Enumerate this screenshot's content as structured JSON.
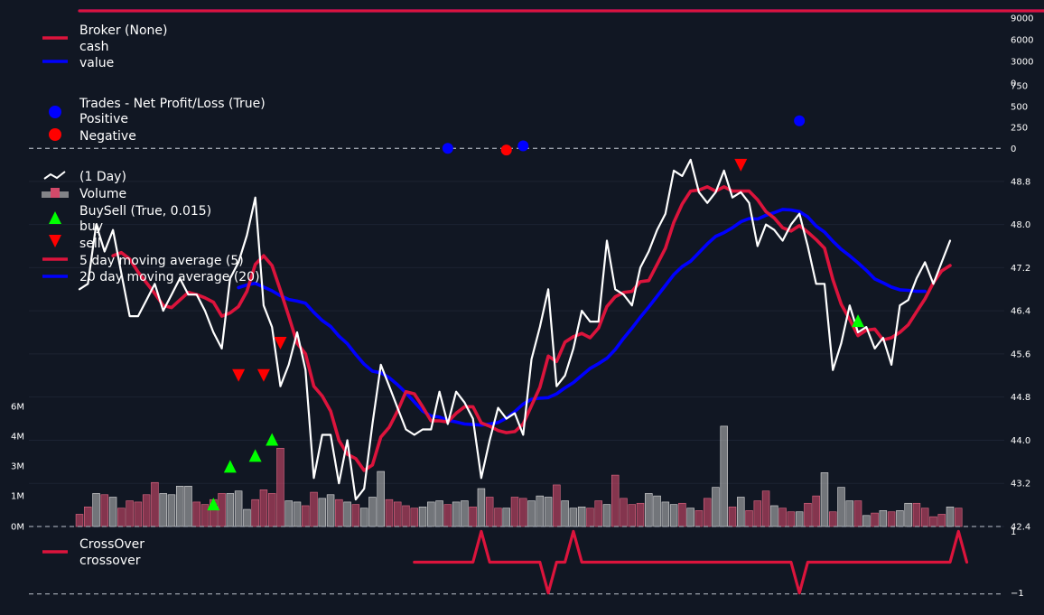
{
  "colors": {
    "background": "#111723",
    "cash": "#dc143c",
    "value": "#0000ff",
    "positive": "#0000ff",
    "negative": "#ff0000",
    "price": "#ffffff",
    "sma5": "#dc143c",
    "sma20": "#0000ff",
    "buy": "#00ff00",
    "sell": "#ff0000",
    "volume_up": "#b4b4b4",
    "volume_down": "#d24a6a",
    "crossover": "#dc143c",
    "grid": "#1c2333",
    "dashed": "#9aa0aa",
    "text": "#ffffff"
  },
  "chart_data": [
    {
      "type": "line",
      "panel": "broker",
      "legend_title": "Broker (None)",
      "legend": "top-left",
      "yticks": [
        "0",
        "3000",
        "6000",
        "9000"
      ],
      "ylim": [
        0,
        10500
      ],
      "series": [
        {
          "name": "cash",
          "values": [
            10000,
            10000,
            10000,
            10000,
            10000,
            10000,
            10000,
            10000,
            10000,
            10000,
            10000,
            10000,
            10000,
            10000,
            10000,
            10000,
            10000,
            10000,
            10000,
            10000,
            10000,
            10000,
            10000,
            10000,
            10000,
            10000,
            10000,
            10000,
            10000,
            10000,
            10000,
            10000,
            10000,
            10000,
            10000,
            10000,
            10000,
            10000,
            10000,
            10000,
            10000,
            10000,
            10000,
            10000,
            10000,
            10000,
            10000,
            10000,
            10000,
            10000,
            10000,
            10000,
            10000,
            10000,
            10000,
            10000,
            10000,
            10000,
            10000,
            10000,
            10000,
            10000,
            10000,
            10000,
            10000,
            10000,
            10000,
            10000,
            10000,
            10000,
            10000,
            10000,
            10000,
            10000,
            10000,
            10000,
            10000,
            10000,
            10000,
            10000,
            10000,
            10000,
            10000,
            10000,
            10000,
            10000,
            10000,
            10000,
            10000,
            10000,
            10000,
            10000,
            10000,
            10000,
            10000,
            10000,
            10000,
            10000,
            10000,
            10000,
            10000,
            10000,
            10000,
            10000,
            10000,
            10000,
            10000,
            10000,
            10000,
            10000,
            10000,
            10000,
            10000,
            10000,
            10000,
            10000,
            10000,
            10000,
            10000,
            10000,
            10000,
            10000
          ]
        },
        {
          "name": "value",
          "values": [
            10000,
            10000,
            10000,
            10000,
            10000,
            10000,
            10000,
            10000,
            10000,
            10000,
            10000,
            10000,
            10000,
            10000,
            10000,
            10000,
            10000,
            10000,
            10000,
            10000,
            10000,
            10000,
            10000,
            10000,
            10000,
            10000,
            10000,
            10000,
            10000,
            10000,
            10000,
            10000,
            10000,
            10000,
            10000,
            10000,
            10000,
            10000,
            10000,
            10000,
            10000,
            10000,
            10000,
            10000,
            10000,
            10000,
            10000,
            10000,
            10000,
            10000,
            10000,
            10000,
            10000,
            10000,
            10000,
            10000,
            10000,
            10000,
            10000,
            10000,
            10000,
            10000,
            10000,
            10000,
            10000,
            10000,
            10000,
            10000,
            10000,
            10000,
            10000,
            10000,
            10000,
            10000,
            10000,
            10000,
            10000,
            10000,
            10000,
            10000,
            10000,
            10000,
            10000,
            10000,
            10000,
            10000,
            10000,
            10000,
            10000,
            10000,
            10000,
            10000,
            10000,
            10000,
            10000,
            10000,
            10000,
            10000,
            10000,
            10000,
            10000,
            10000,
            10000,
            10000,
            10000,
            10000,
            10000,
            10000,
            10000,
            10000,
            10000,
            10000,
            10000,
            10000,
            10000,
            10000,
            10000,
            10000,
            10000,
            10000,
            10000,
            10000
          ]
        }
      ]
    },
    {
      "type": "scatter",
      "panel": "trades",
      "legend_title": "Trades - Net Profit/Loss (True)",
      "legend": "top-left",
      "yticks": [
        "0",
        "250",
        "500",
        "750"
      ],
      "ylim": [
        -40,
        780
      ],
      "series": [
        {
          "name": "Positive",
          "points": [
            [
              44,
              0
            ],
            [
              53,
              30
            ],
            [
              86,
              330
            ]
          ]
        },
        {
          "name": "Negative",
          "points": [
            [
              51,
              -20
            ]
          ]
        }
      ]
    },
    {
      "type": "line",
      "panel": "price",
      "legend": "top-left",
      "yticks": [
        "42.4",
        "43.2",
        "44.0",
        "44.8",
        "45.6",
        "46.4",
        "47.2",
        "48.0",
        "48.8"
      ],
      "ylim": [
        42.4,
        49.4
      ],
      "volume_yticks": [
        "0M",
        "1M",
        "3M",
        "4M",
        "6M"
      ],
      "volume_ylim": [
        0,
        6.2
      ],
      "series": [
        {
          "name": "(1 Day)",
          "values": [
            46.8,
            46.9,
            48.0,
            47.5,
            47.9,
            47.1,
            46.3,
            46.3,
            46.6,
            46.9,
            46.4,
            46.7,
            47.0,
            46.7,
            46.7,
            46.4,
            46.0,
            45.7,
            47.0,
            47.3,
            47.8,
            48.5,
            46.5,
            46.1,
            45.0,
            45.4,
            46.0,
            45.3,
            43.3,
            44.1,
            44.1,
            43.2,
            44.0,
            42.9,
            43.1,
            44.3,
            45.4,
            45.0,
            44.6,
            44.2,
            44.1,
            44.2,
            44.2,
            44.9,
            44.3,
            44.9,
            44.7,
            44.4,
            43.3,
            44.0,
            44.6,
            44.4,
            44.5,
            44.1,
            45.5,
            46.1,
            46.8,
            45.0,
            45.2,
            45.7,
            46.4,
            46.2,
            46.2,
            47.7,
            46.8,
            46.7,
            46.5,
            47.2,
            47.5,
            47.9,
            48.2,
            49.0,
            48.9,
            49.2,
            48.6,
            48.4,
            48.6,
            49.0,
            48.5,
            48.6,
            48.4,
            47.6,
            48.0,
            47.9,
            47.7,
            48.0,
            48.2,
            47.6,
            46.9,
            46.9,
            45.3,
            45.8,
            46.5,
            46.0,
            46.1,
            45.7,
            45.9,
            45.4,
            46.5,
            46.6,
            47.0,
            47.3,
            46.9,
            47.3,
            47.7
          ]
        },
        {
          "name": "5 day moving average (5)",
          "values": [
            null,
            null,
            null,
            null,
            47.42,
            47.48,
            47.36,
            47.12,
            46.92,
            46.72,
            46.5,
            46.46,
            46.6,
            46.74,
            46.7,
            46.64,
            46.56,
            46.3,
            46.36,
            46.48,
            46.76,
            47.26,
            47.42,
            47.24,
            46.78,
            46.3,
            45.8,
            45.6,
            45.0,
            44.82,
            44.54,
            44.0,
            43.74,
            43.66,
            43.44,
            43.54,
            44.06,
            44.24,
            44.54,
            44.9,
            44.86,
            44.62,
            44.36,
            44.36,
            44.34,
            44.5,
            44.62,
            44.62,
            44.32,
            44.26,
            44.18,
            44.14,
            44.16,
            44.3,
            44.64,
            44.98,
            45.56,
            45.46,
            45.82,
            45.92,
            45.98,
            45.9,
            46.08,
            46.48,
            46.66,
            46.74,
            46.76,
            46.94,
            46.96,
            47.26,
            47.56,
            48.04,
            48.38,
            48.62,
            48.64,
            48.7,
            48.62,
            48.7,
            48.62,
            48.62,
            48.62,
            48.46,
            48.24,
            48.12,
            47.94,
            47.88,
            47.98,
            47.86,
            47.72,
            47.56,
            46.98,
            46.52,
            46.24,
            45.94,
            46.04,
            46.06,
            45.86,
            45.9,
            46.0,
            46.14,
            46.38,
            46.62,
            46.92,
            47.14,
            47.24
          ]
        },
        {
          "name": "20 day moving average (20)",
          "values": [
            null,
            null,
            null,
            null,
            null,
            null,
            null,
            null,
            null,
            null,
            null,
            null,
            null,
            null,
            null,
            null,
            null,
            null,
            null,
            46.83,
            46.88,
            46.91,
            46.84,
            46.77,
            46.68,
            46.61,
            46.58,
            46.54,
            46.37,
            46.22,
            46.11,
            45.93,
            45.79,
            45.59,
            45.41,
            45.28,
            45.25,
            45.16,
            45.03,
            44.88,
            44.71,
            44.54,
            44.45,
            44.43,
            44.37,
            44.34,
            44.3,
            44.29,
            44.28,
            44.3,
            44.33,
            44.41,
            44.53,
            44.67,
            44.76,
            44.78,
            44.79,
            44.86,
            44.97,
            45.07,
            45.2,
            45.33,
            45.42,
            45.52,
            45.68,
            45.89,
            46.08,
            46.28,
            46.47,
            46.67,
            46.87,
            47.07,
            47.22,
            47.32,
            47.48,
            47.64,
            47.78,
            47.85,
            47.94,
            48.05,
            48.11,
            48.1,
            48.17,
            48.22,
            48.28,
            48.27,
            48.24,
            48.14,
            47.97,
            47.86,
            47.69,
            47.54,
            47.42,
            47.29,
            47.15,
            46.99,
            46.92,
            46.84,
            46.79,
            46.78,
            46.76,
            46.76
          ]
        }
      ],
      "volume": [
        0.5,
        0.8,
        1.35,
        1.3,
        1.2,
        0.75,
        1.05,
        1.0,
        1.3,
        1.8,
        1.35,
        1.3,
        1.65,
        1.65,
        1.0,
        0.9,
        1.1,
        1.35,
        1.35,
        1.45,
        0.7,
        1.1,
        1.5,
        1.35,
        3.2,
        1.05,
        1.0,
        0.85,
        1.4,
        1.15,
        1.3,
        1.1,
        1.0,
        0.9,
        0.75,
        1.2,
        2.25,
        1.1,
        1.0,
        0.85,
        0.75,
        0.8,
        1.0,
        1.05,
        0.9,
        1.0,
        1.05,
        0.8,
        1.55,
        1.2,
        0.75,
        0.75,
        1.2,
        1.15,
        1.05,
        1.25,
        1.2,
        1.7,
        1.05,
        0.75,
        0.8,
        0.75,
        1.05,
        0.9,
        2.1,
        1.15,
        0.9,
        0.95,
        1.35,
        1.25,
        1.0,
        0.9,
        0.95,
        0.75,
        0.65,
        1.15,
        1.6,
        4.1,
        0.8,
        1.2,
        0.65,
        1.05,
        1.45,
        0.85,
        0.75,
        0.6,
        0.6,
        0.95,
        1.25,
        2.2,
        0.6,
        1.6,
        1.05,
        1.05,
        0.45,
        0.55,
        0.65,
        0.6,
        0.65,
        0.95,
        0.95,
        0.75,
        0.4,
        0.5,
        0.8,
        0.75
      ],
      "volume_up": [
        0,
        0,
        1,
        0,
        1,
        0,
        0,
        0,
        0,
        0,
        1,
        1,
        1,
        1,
        0,
        0,
        0,
        0,
        1,
        1,
        1,
        0,
        0,
        0,
        0,
        1,
        1,
        0,
        0,
        1,
        1,
        0,
        1,
        0,
        1,
        1,
        1,
        0,
        0,
        0,
        0,
        1,
        1,
        1,
        0,
        1,
        1,
        0,
        1,
        0,
        0,
        1,
        0,
        0,
        1,
        1,
        1,
        0,
        1,
        1,
        1,
        0,
        0,
        1,
        0,
        0,
        0,
        0,
        1,
        1,
        1,
        1,
        0,
        1,
        0,
        0,
        1,
        1,
        0,
        1,
        0,
        0,
        0,
        1,
        0,
        0,
        1,
        0,
        0,
        1,
        0,
        1,
        1,
        0,
        1,
        0,
        1,
        0,
        1,
        1,
        0,
        0,
        0,
        0,
        1,
        0
      ],
      "buy": [
        [
          16,
          42.8
        ],
        [
          18,
          43.5
        ],
        [
          21,
          43.7
        ],
        [
          23,
          44.0
        ],
        [
          93,
          46.2
        ]
      ],
      "sell": [
        [
          19,
          45.2
        ],
        [
          22,
          45.2
        ],
        [
          24,
          45.8
        ],
        [
          79,
          49.1
        ]
      ]
    },
    {
      "type": "line",
      "panel": "crossover",
      "legend_title": "CrossOver",
      "legend": "top-left",
      "yticks": [
        "1",
        "−1"
      ],
      "ylim": [
        -1.1,
        1.1
      ],
      "series": [
        {
          "name": "crossover",
          "values": [
            0,
            0,
            0,
            0,
            0,
            0,
            0,
            0,
            0,
            0,
            0,
            0,
            0,
            0,
            0,
            0,
            0,
            0,
            0,
            0,
            0,
            0,
            0,
            1,
            0,
            0,
            0,
            -1,
            0,
            0,
            0,
            0,
            0,
            0,
            0,
            0,
            0,
            0,
            0,
            0,
            0,
            0,
            0,
            0,
            0,
            0,
            0,
            0,
            1,
            0,
            0,
            0,
            0,
            0,
            0,
            0,
            -1,
            0,
            0,
            1,
            0,
            0,
            0,
            0,
            0,
            0,
            0,
            0,
            0,
            0,
            0,
            0,
            0,
            0,
            0,
            0,
            0,
            0,
            0,
            0,
            0,
            0,
            0,
            0,
            0,
            0,
            -1,
            0,
            0,
            0,
            0,
            0,
            0,
            0,
            0,
            0,
            0,
            0,
            0,
            0,
            0,
            0,
            0,
            0,
            0,
            1,
            0
          ]
        }
      ]
    }
  ],
  "legends": {
    "broker": {
      "title": "Broker (None)",
      "items": [
        "cash",
        "value"
      ]
    },
    "trades": {
      "title": "Trades - Net Profit/Loss (True)",
      "items": [
        "Positive",
        "Negative"
      ]
    },
    "price": {
      "items": [
        " (1 Day)",
        "Volume",
        "BuySell (True, 0.015)",
        "buy",
        "sell",
        "5 day moving average (5)",
        "20 day moving average (20)"
      ]
    },
    "crossover": {
      "title": "CrossOver",
      "items": [
        "crossover"
      ]
    }
  }
}
